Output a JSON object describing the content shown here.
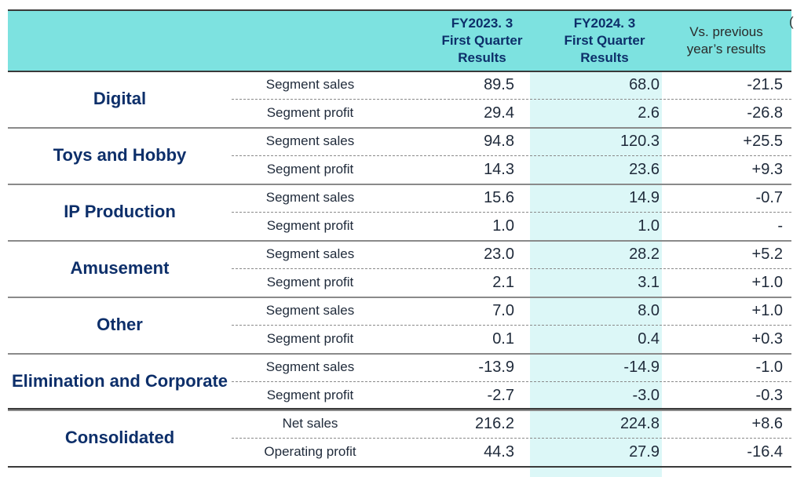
{
  "header": {
    "col1": [
      "FY2023. 3",
      "First Quarter",
      "Results"
    ],
    "col2": [
      "FY2024. 3",
      "First Quarter",
      "Results"
    ],
    "col3": [
      "Vs. previous",
      "year’s results"
    ],
    "unit_fragment": "("
  },
  "rows": [
    {
      "segment": "Digital",
      "metrics": [
        {
          "label": "Segment sales",
          "fy2023": "89.5",
          "fy2024": "68.0",
          "diff": "-21.5"
        },
        {
          "label": "Segment profit",
          "fy2023": "29.4",
          "fy2024": "2.6",
          "diff": "-26.8"
        }
      ]
    },
    {
      "segment": "Toys and Hobby",
      "metrics": [
        {
          "label": "Segment sales",
          "fy2023": "94.8",
          "fy2024": "120.3",
          "diff": "+25.5"
        },
        {
          "label": "Segment profit",
          "fy2023": "14.3",
          "fy2024": "23.6",
          "diff": "+9.3"
        }
      ]
    },
    {
      "segment": "IP Production",
      "metrics": [
        {
          "label": "Segment sales",
          "fy2023": "15.6",
          "fy2024": "14.9",
          "diff": "-0.7"
        },
        {
          "label": "Segment profit",
          "fy2023": "1.0",
          "fy2024": "1.0",
          "diff": "-"
        }
      ]
    },
    {
      "segment": "Amusement",
      "metrics": [
        {
          "label": "Segment sales",
          "fy2023": "23.0",
          "fy2024": "28.2",
          "diff": "+5.2"
        },
        {
          "label": "Segment profit",
          "fy2023": "2.1",
          "fy2024": "3.1",
          "diff": "+1.0"
        }
      ]
    },
    {
      "segment": "Other",
      "metrics": [
        {
          "label": "Segment sales",
          "fy2023": "7.0",
          "fy2024": "8.0",
          "diff": "+1.0"
        },
        {
          "label": "Segment profit",
          "fy2023": "0.1",
          "fy2024": "0.4",
          "diff": "+0.3"
        }
      ]
    },
    {
      "segment": "Elimination and Corporate",
      "metrics": [
        {
          "label": "Segment sales",
          "fy2023": "-13.9",
          "fy2024": "-14.9",
          "diff": "-1.0"
        },
        {
          "label": "Segment profit",
          "fy2023": "-2.7",
          "fy2024": "-3.0",
          "diff": "-0.3"
        }
      ]
    },
    {
      "segment": "Consolidated",
      "metrics": [
        {
          "label": "Net sales",
          "fy2023": "216.2",
          "fy2024": "224.8",
          "diff": "+8.6"
        },
        {
          "label": "Operating profit",
          "fy2023": "44.3",
          "fy2024": "27.9",
          "diff": "-16.4"
        }
      ]
    }
  ]
}
